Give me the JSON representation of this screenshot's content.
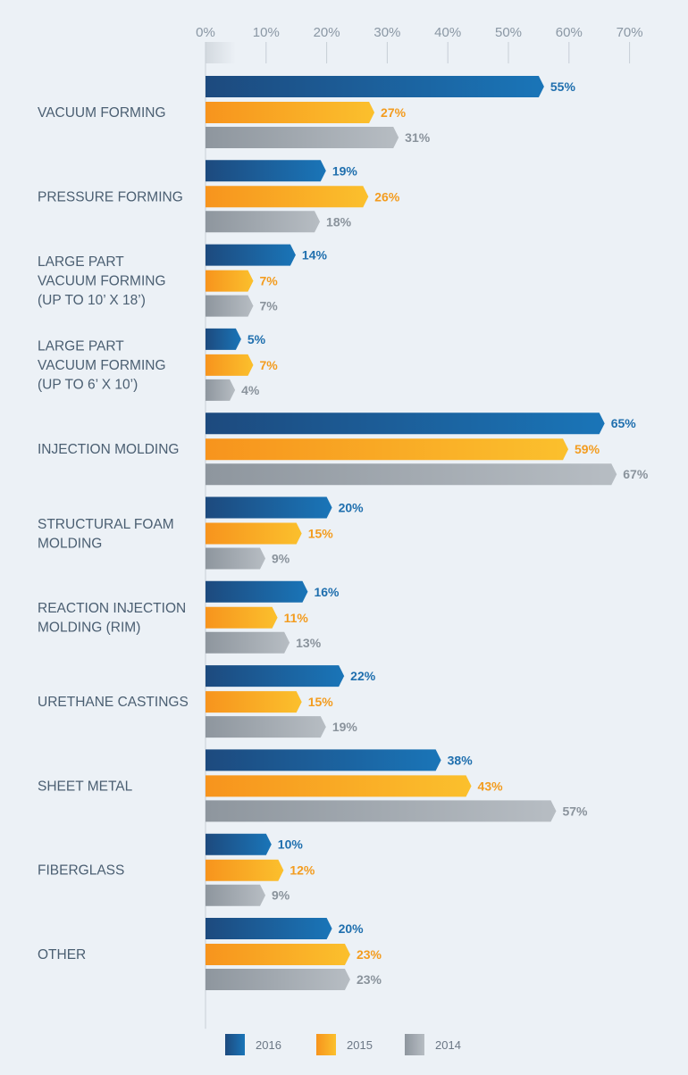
{
  "chart_data": {
    "type": "bar",
    "orientation": "horizontal",
    "title": "",
    "xlabel": "",
    "ylabel": "",
    "xlim": [
      0,
      70
    ],
    "ticks": [
      0,
      10,
      20,
      30,
      40,
      50,
      60,
      70
    ],
    "tick_format": "%",
    "grid": true,
    "legend_position": "bottom",
    "categories": [
      [
        "VACUUM FORMING"
      ],
      [
        "PRESSURE FORMING"
      ],
      [
        "LARGE PART",
        "VACUUM FORMING",
        "(UP TO 10’ X 18’)"
      ],
      [
        "LARGE PART",
        "VACUUM FORMING",
        "(UP TO 6’ X 10’)"
      ],
      [
        "INJECTION MOLDING"
      ],
      [
        "STRUCTURAL FOAM",
        "MOLDING"
      ],
      [
        "REACTION INJECTION",
        "MOLDING (RIM)"
      ],
      [
        "URETHANE CASTINGS"
      ],
      [
        "SHEET METAL"
      ],
      [
        "FIBERGLASS"
      ],
      [
        "OTHER"
      ]
    ],
    "series": [
      {
        "name": "2016",
        "color": "#1a75b8",
        "color_dark": "#1d4a7e",
        "label_color": "#1f6fae",
        "values": [
          55,
          19,
          14,
          5,
          65,
          20,
          16,
          22,
          38,
          10,
          20
        ]
      },
      {
        "name": "2015",
        "color": "#fbc02d",
        "color_dark": "#f7941d",
        "label_color": "#f39c1f",
        "values": [
          27,
          26,
          7,
          7,
          59,
          15,
          11,
          15,
          43,
          12,
          23
        ]
      },
      {
        "name": "2014",
        "color": "#b7bdc3",
        "color_dark": "#8e969e",
        "label_color": "#8a939c",
        "values": [
          31,
          18,
          7,
          4,
          67,
          9,
          13,
          19,
          57,
          9,
          23
        ]
      }
    ]
  }
}
